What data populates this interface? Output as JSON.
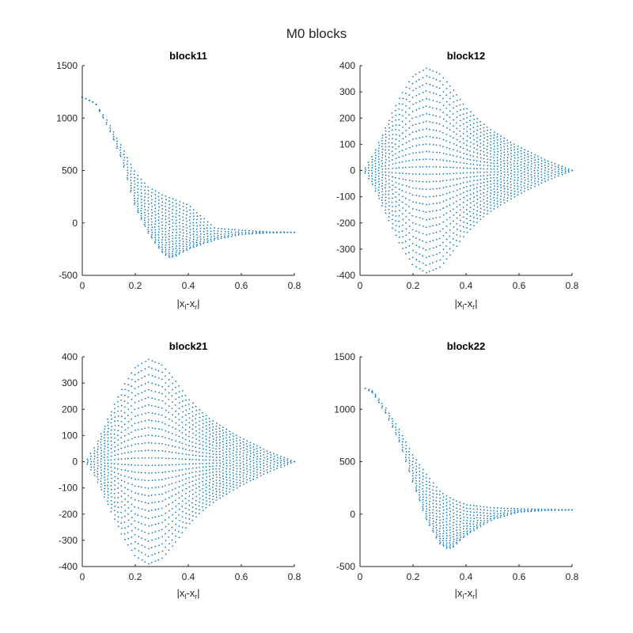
{
  "figure": {
    "title": "M0 blocks",
    "point_color": "#0072BD",
    "axis_color": "#262626"
  },
  "chart_data": [
    {
      "type": "scatter",
      "title": "block11",
      "xlabel": "|x_l-x_r|",
      "xlabel_parts": [
        "|x",
        "l",
        "-x",
        "r",
        "|"
      ],
      "xlim": [
        0,
        0.8
      ],
      "ylim": [
        -500,
        1500
      ],
      "xticks": [
        "0",
        "0.2",
        "0.4",
        "0.6",
        "0.8"
      ],
      "yticks": [
        "-500",
        "0",
        "500",
        "1000",
        "1500"
      ],
      "shape": "decay",
      "x": [
        0.0,
        0.05,
        0.1,
        0.15,
        0.2,
        0.25,
        0.3,
        0.33,
        0.35,
        0.4,
        0.5,
        0.6,
        0.7,
        0.8
      ],
      "upper": [
        1200,
        1140,
        950,
        720,
        480,
        340,
        270,
        240,
        220,
        170,
        -50,
        -70,
        -85,
        -90
      ],
      "lower": [
        1200,
        1140,
        900,
        600,
        150,
        -100,
        -280,
        -330,
        -320,
        -250,
        -160,
        -110,
        -95,
        -90
      ]
    },
    {
      "type": "scatter",
      "title": "block12",
      "xlabel": "|x_l-x_r|",
      "xlabel_parts": [
        "|x",
        "l",
        "-x",
        "r",
        "|"
      ],
      "xlim": [
        0,
        0.8
      ],
      "ylim": [
        -400,
        400
      ],
      "xticks": [
        "0",
        "0.2",
        "0.4",
        "0.6",
        "0.8"
      ],
      "yticks": [
        "-400",
        "-300",
        "-200",
        "-100",
        "0",
        "100",
        "200",
        "300",
        "400"
      ],
      "shape": "symmetric",
      "x": [
        0.02,
        0.05,
        0.1,
        0.15,
        0.2,
        0.25,
        0.3,
        0.35,
        0.4,
        0.45,
        0.5,
        0.6,
        0.7,
        0.8
      ],
      "upper": [
        10,
        60,
        170,
        280,
        360,
        390,
        370,
        310,
        240,
        190,
        150,
        90,
        40,
        0
      ],
      "lower": [
        -10,
        -60,
        -170,
        -280,
        -360,
        -390,
        -370,
        -310,
        -240,
        -190,
        -150,
        -90,
        -40,
        0
      ]
    },
    {
      "type": "scatter",
      "title": "block21",
      "xlabel": "|x_l-x_r|",
      "xlabel_parts": [
        "|x",
        "l",
        "-x",
        "r",
        "|"
      ],
      "xlim": [
        0,
        0.8
      ],
      "ylim": [
        -400,
        400
      ],
      "xticks": [
        "0",
        "0.2",
        "0.4",
        "0.6",
        "0.8"
      ],
      "yticks": [
        "-400",
        "-300",
        "-200",
        "-100",
        "0",
        "100",
        "200",
        "300",
        "400"
      ],
      "shape": "symmetric",
      "x": [
        0.02,
        0.05,
        0.1,
        0.15,
        0.2,
        0.25,
        0.3,
        0.35,
        0.4,
        0.45,
        0.5,
        0.6,
        0.7,
        0.8
      ],
      "upper": [
        10,
        60,
        170,
        280,
        360,
        390,
        370,
        310,
        240,
        190,
        150,
        90,
        40,
        0
      ],
      "lower": [
        -10,
        -60,
        -170,
        -280,
        -360,
        -390,
        -370,
        -310,
        -240,
        -190,
        -150,
        -90,
        -40,
        0
      ]
    },
    {
      "type": "scatter",
      "title": "block22",
      "xlabel": "|x_l-x_r|",
      "xlabel_parts": [
        "|x",
        "l",
        "-x",
        "r",
        "|"
      ],
      "xlim": [
        0,
        0.8
      ],
      "ylim": [
        -500,
        1500
      ],
      "xticks": [
        "0",
        "0.2",
        "0.4",
        "0.6",
        "0.8"
      ],
      "yticks": [
        "-500",
        "0",
        "500",
        "1000",
        "1500"
      ],
      "shape": "decay",
      "x": [
        0.02,
        0.05,
        0.1,
        0.15,
        0.2,
        0.25,
        0.3,
        0.33,
        0.35,
        0.4,
        0.5,
        0.6,
        0.7,
        0.8
      ],
      "upper": [
        1200,
        1170,
        1000,
        800,
        560,
        380,
        220,
        170,
        140,
        90,
        60,
        50,
        45,
        40
      ],
      "lower": [
        1200,
        1150,
        950,
        680,
        300,
        -50,
        -280,
        -330,
        -320,
        -200,
        -50,
        20,
        35,
        40
      ]
    }
  ]
}
